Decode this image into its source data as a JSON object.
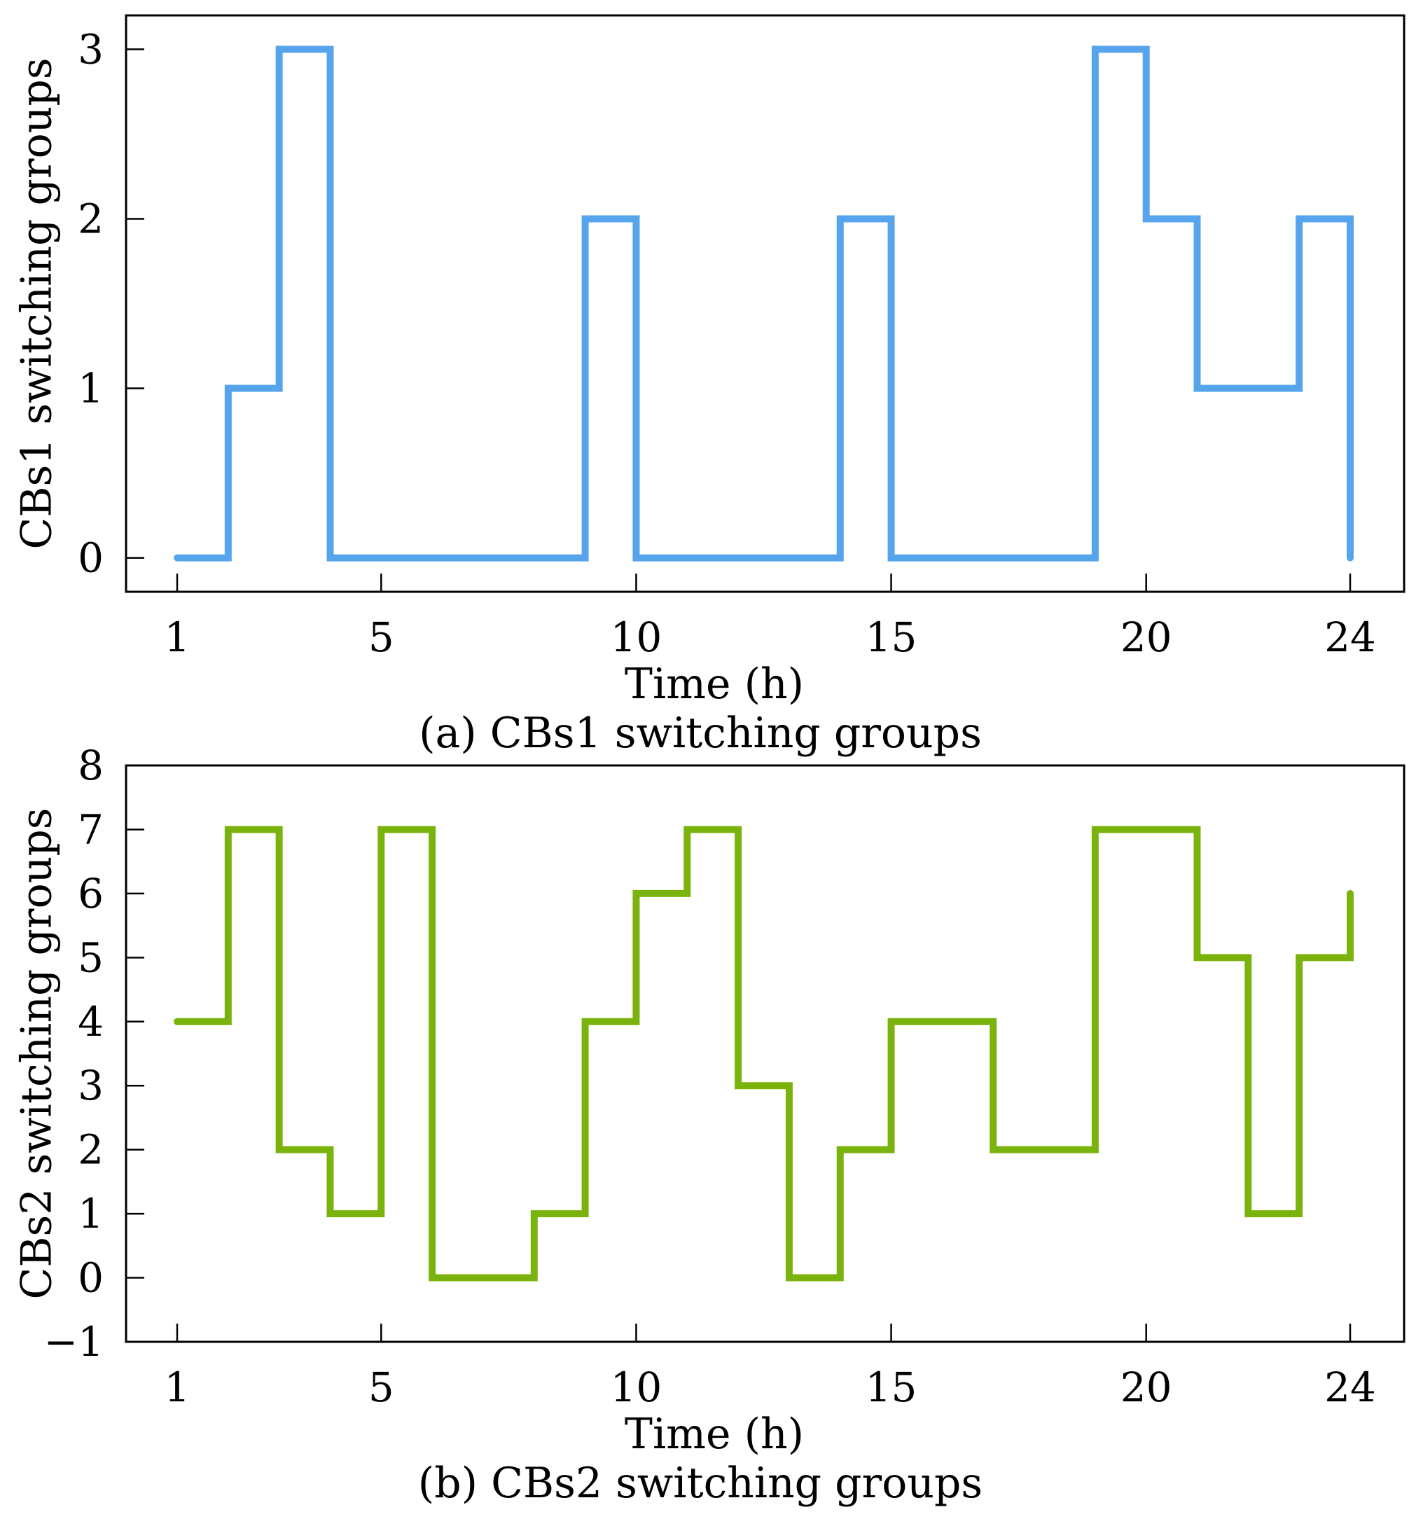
{
  "chart_data": [
    {
      "type": "line",
      "step": "post",
      "title": "",
      "caption": "(a) CBs1 switching groups",
      "xlabel": "Time (h)",
      "ylabel": "CBs1 switching groups",
      "xlim": [
        1,
        24
      ],
      "ylim": [
        -0.2,
        3.2
      ],
      "xticks": [
        1,
        5,
        10,
        15,
        20,
        24
      ],
      "yticks": [
        0,
        1,
        2,
        3
      ],
      "xtick_labels": [
        "1",
        "5",
        "10",
        "15",
        "20",
        "24"
      ],
      "ytick_labels": [
        "0",
        "1",
        "2",
        "3"
      ],
      "grid": false,
      "series": [
        {
          "name": "CBs1",
          "color": "#56A5EC",
          "x": [
            1,
            2,
            3,
            4,
            5,
            6,
            7,
            8,
            9,
            10,
            11,
            12,
            13,
            14,
            15,
            16,
            17,
            18,
            19,
            20,
            21,
            22,
            23,
            24
          ],
          "values": [
            0,
            1,
            3,
            0,
            0,
            0,
            0,
            0,
            2,
            0,
            0,
            0,
            0,
            2,
            0,
            0,
            0,
            0,
            3,
            2,
            1,
            1,
            2,
            0
          ]
        }
      ]
    },
    {
      "type": "line",
      "step": "post",
      "title": "",
      "caption": "(b) CBs2 switching groups",
      "xlabel": "Time (h)",
      "ylabel": "CBs2 switching groups",
      "xlim": [
        1,
        24
      ],
      "ylim": [
        -1,
        8
      ],
      "xticks": [
        1,
        5,
        10,
        15,
        20,
        24
      ],
      "yticks": [
        -1,
        0,
        1,
        2,
        3,
        4,
        5,
        6,
        7,
        8
      ],
      "xtick_labels": [
        "1",
        "5",
        "10",
        "15",
        "20",
        "24"
      ],
      "ytick_labels": [
        "−1",
        "0",
        "1",
        "2",
        "3",
        "4",
        "5",
        "6",
        "7",
        "8"
      ],
      "grid": false,
      "series": [
        {
          "name": "CBs2",
          "color": "#7AB30E",
          "x": [
            1,
            2,
            3,
            4,
            5,
            6,
            7,
            8,
            9,
            10,
            11,
            12,
            13,
            14,
            15,
            16,
            17,
            18,
            19,
            20,
            21,
            22,
            23,
            24
          ],
          "values": [
            4,
            7,
            2,
            1,
            7,
            0,
            0,
            1,
            4,
            6,
            7,
            3,
            0,
            2,
            4,
            4,
            2,
            2,
            7,
            7,
            5,
            1,
            5,
            6
          ]
        }
      ]
    }
  ]
}
